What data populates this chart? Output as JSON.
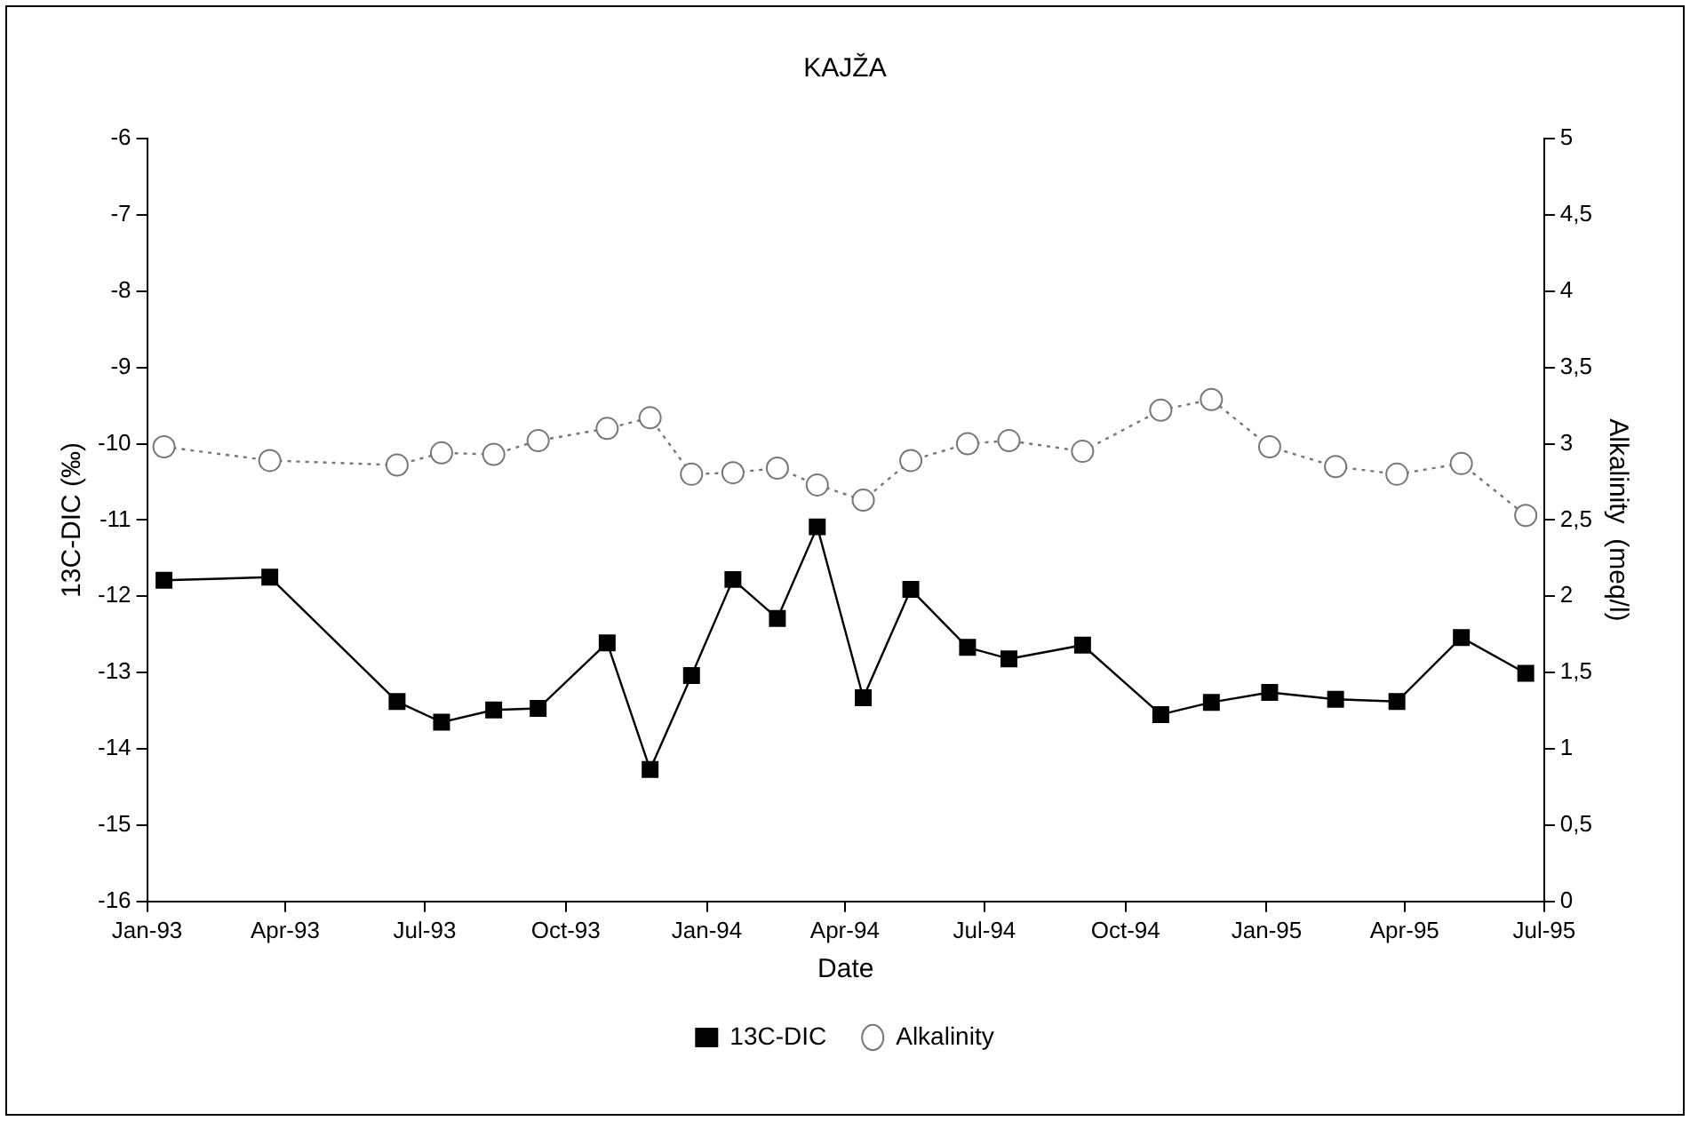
{
  "chart_data": {
    "type": "line",
    "title": "KAJŽA",
    "xlabel": "Date",
    "ylabel": "13C-DIC (‰)",
    "y2label": "Alkalinity  (meq/l)",
    "x": [
      "1993-01-12",
      "1993-03-22",
      "1993-06-13",
      "1993-07-12",
      "1993-08-15",
      "1993-09-13",
      "1993-10-28",
      "1993-11-25",
      "1993-12-22",
      "1994-01-18",
      "1994-02-16",
      "1994-03-14",
      "1994-04-13",
      "1994-05-14",
      "1994-06-20",
      "1994-07-17",
      "1994-09-03",
      "1994-10-24",
      "1994-11-26",
      "1995-01-03",
      "1995-02-15",
      "1995-03-27",
      "1995-05-08",
      "1995-06-19"
    ],
    "series": [
      {
        "name": "13C-DIC",
        "color": "#000000",
        "marker": "square",
        "line_style": "solid",
        "values": [
          -11.79,
          -11.75,
          -13.38,
          -13.65,
          -13.49,
          -13.47,
          -12.61,
          -14.27,
          -13.04,
          -11.78,
          -12.29,
          -11.09,
          -13.33,
          -11.91,
          -12.67,
          -12.82,
          -12.64,
          -13.55,
          -13.39,
          -13.26,
          -13.35,
          -13.38,
          -12.54,
          -13.01
        ]
      },
      {
        "name": "Alkalinity",
        "color": "#777777",
        "marker": "circle",
        "line_style": "dotted",
        "axis": "y2",
        "values": [
          2.98,
          2.89,
          2.86,
          2.94,
          2.93,
          3.02,
          3.1,
          3.17,
          2.8,
          2.81,
          2.84,
          2.73,
          2.63,
          2.89,
          3.0,
          3.02,
          2.95,
          3.22,
          3.29,
          2.98,
          2.85,
          2.8,
          2.87,
          2.53
        ]
      }
    ],
    "xlim": [
      "1993-01-01",
      "1995-07-01"
    ],
    "xticks": [
      {
        "value": "1993-01-01",
        "label": "Jan-93"
      },
      {
        "value": "1993-04-01",
        "label": "Apr-93"
      },
      {
        "value": "1993-07-01",
        "label": "Jul-93"
      },
      {
        "value": "1993-10-01",
        "label": "Oct-93"
      },
      {
        "value": "1994-01-01",
        "label": "Jan-94"
      },
      {
        "value": "1994-04-01",
        "label": "Apr-94"
      },
      {
        "value": "1994-07-01",
        "label": "Jul-94"
      },
      {
        "value": "1994-10-01",
        "label": "Oct-94"
      },
      {
        "value": "1995-01-01",
        "label": "Jan-95"
      },
      {
        "value": "1995-04-01",
        "label": "Apr-95"
      },
      {
        "value": "1995-07-01",
        "label": "Jul-95"
      }
    ],
    "ylim": [
      -16,
      -6
    ],
    "yticks": [
      -16,
      -15,
      -14,
      -13,
      -12,
      -11,
      -10,
      -9,
      -8,
      -7,
      -6
    ],
    "y2lim": [
      0,
      5
    ],
    "y2ticks": [
      0,
      {
        "value": 0.5,
        "label": "0,5"
      },
      1,
      {
        "value": 1.5,
        "label": "1,5"
      },
      2,
      {
        "value": 2.5,
        "label": "2,5"
      },
      3,
      {
        "value": 3.5,
        "label": "3,5"
      },
      4,
      {
        "value": 4.5,
        "label": "4,5"
      },
      5
    ],
    "grid": false,
    "legend": "bottom"
  }
}
